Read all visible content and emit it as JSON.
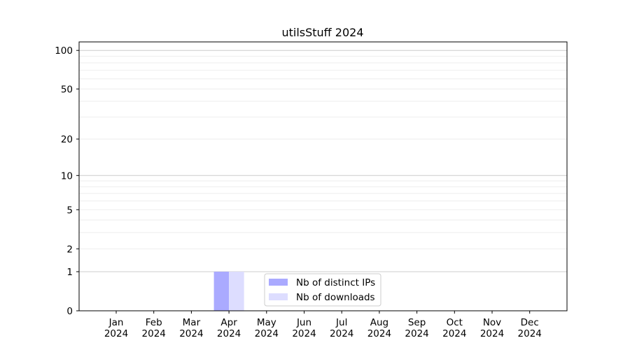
{
  "chart_data": {
    "type": "bar",
    "title": "utilsStuff 2024",
    "xlabel": "",
    "ylabel": "",
    "yscale": "symlog",
    "ylim": [
      0,
      116
    ],
    "yticks": [
      0,
      1,
      2,
      5,
      10,
      20,
      50,
      100
    ],
    "ytick_labels": [
      "0",
      "1",
      "2",
      "5",
      "10",
      "20",
      "50",
      "100"
    ],
    "grid": true,
    "legend_position": "lower-center",
    "categories": [
      {
        "month": "Jan",
        "year": "2024"
      },
      {
        "month": "Feb",
        "year": "2024"
      },
      {
        "month": "Mar",
        "year": "2024"
      },
      {
        "month": "Apr",
        "year": "2024"
      },
      {
        "month": "May",
        "year": "2024"
      },
      {
        "month": "Jun",
        "year": "2024"
      },
      {
        "month": "Jul",
        "year": "2024"
      },
      {
        "month": "Aug",
        "year": "2024"
      },
      {
        "month": "Sep",
        "year": "2024"
      },
      {
        "month": "Oct",
        "year": "2024"
      },
      {
        "month": "Nov",
        "year": "2024"
      },
      {
        "month": "Dec",
        "year": "2024"
      }
    ],
    "series": [
      {
        "name": "Nb of distinct IPs",
        "color": "#aaaaff",
        "values": [
          0,
          0,
          0,
          1,
          0,
          0,
          0,
          0,
          0,
          0,
          0,
          0
        ]
      },
      {
        "name": "Nb of downloads",
        "color": "#ddddff",
        "values": [
          0,
          0,
          0,
          1,
          0,
          0,
          0,
          0,
          0,
          0,
          0,
          0
        ]
      }
    ]
  }
}
